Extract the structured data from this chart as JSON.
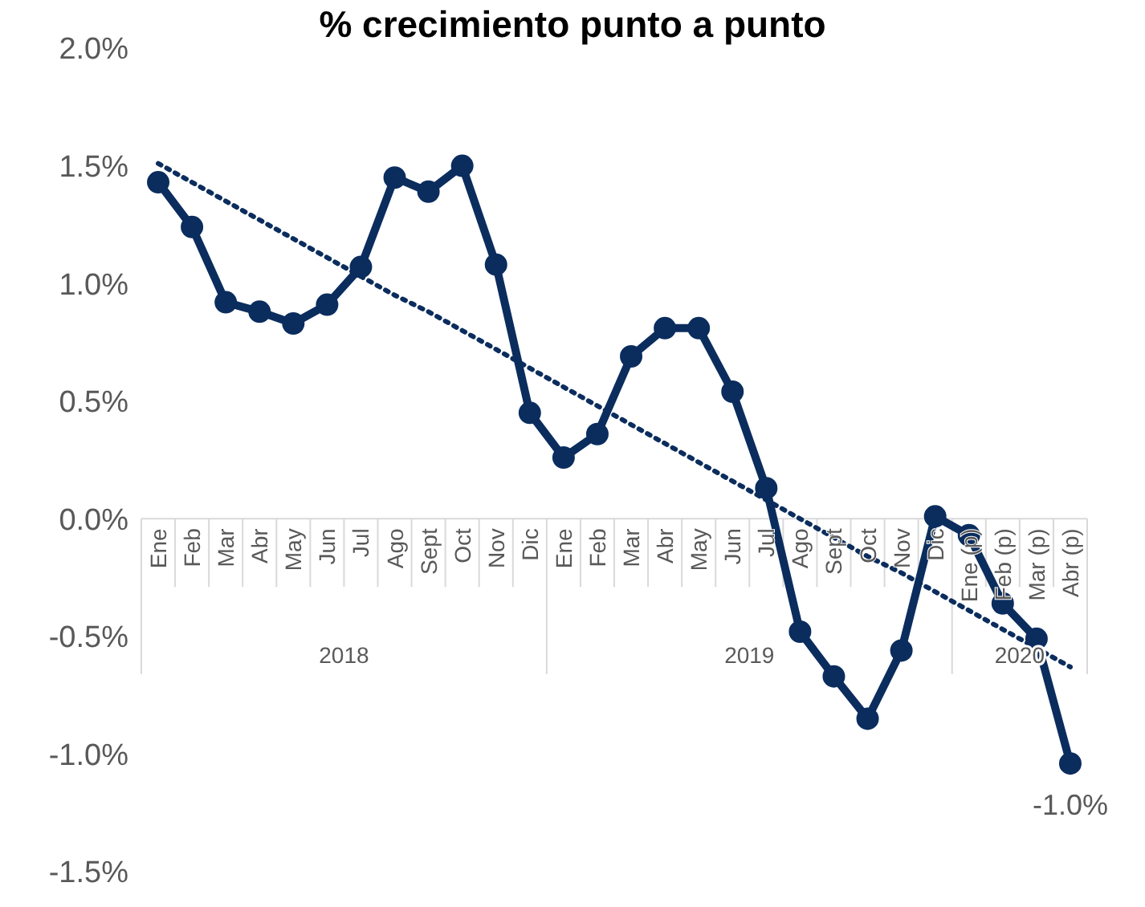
{
  "chart_data": {
    "type": "line",
    "title": "% crecimiento punto a punto",
    "categories": [
      "Ene",
      "Feb",
      "Mar",
      "Abr",
      "May",
      "Jun",
      "Jul",
      "Ago",
      "Sept",
      "Oct",
      "Nov",
      "Dic",
      "Ene",
      "Feb",
      "Mar",
      "Abr",
      "May",
      "Jun",
      "Jul",
      "Ago",
      "Sept",
      "Oct",
      "Nov",
      "Dic",
      "Ene (p)",
      "Feb (p)",
      "Mar (p)",
      "Abr (p)"
    ],
    "annotations": [
      "2018",
      "2019",
      "2020"
    ],
    "series": [
      {
        "color": "#0b2d5e",
        "values": [
          1.43,
          1.24,
          0.92,
          0.88,
          0.83,
          0.91,
          1.07,
          1.45,
          1.39,
          1.5,
          1.08,
          0.45,
          0.26,
          0.36,
          0.69,
          0.81,
          0.81,
          0.54,
          0.13,
          -0.48,
          -0.67,
          -0.85,
          -0.56,
          0.01,
          -0.07,
          -0.36,
          -0.51,
          -1.04
        ],
        "value_labels": [
          null,
          null,
          null,
          null,
          null,
          null,
          null,
          null,
          null,
          null,
          null,
          null,
          null,
          null,
          null,
          null,
          null,
          null,
          null,
          null,
          null,
          null,
          null,
          null,
          null,
          null,
          null,
          "-1.0%"
        ]
      },
      {
        "type": "line",
        "color": "#0b2d5e",
        "line_style": "dotted",
        "marker": "none",
        "values": [
          1.51,
          1.43,
          1.35,
          1.27,
          1.19,
          1.11,
          1.03,
          0.95,
          0.88,
          0.8,
          0.72,
          0.64,
          0.56,
          0.48,
          0.4,
          0.32,
          0.24,
          0.16,
          0.08,
          0.0,
          -0.08,
          -0.16,
          -0.23,
          -0.31,
          -0.39,
          -0.47,
          -0.55,
          -0.63
        ]
      }
    ],
    "ylim": [
      -1.5,
      2.0
    ],
    "yticks": [
      {
        "value": -1.5,
        "label": "-1.5%"
      },
      {
        "value": -1.0,
        "label": "-1.0%"
      },
      {
        "value": -0.5,
        "label": "-0.5%"
      },
      {
        "value": 0,
        "label": "0.0%"
      },
      {
        "value": 0.5,
        "label": "0.5%"
      },
      {
        "value": 1.0,
        "label": "1.0%"
      },
      {
        "value": 1.5,
        "label": "1.5%"
      },
      {
        "value": 2.0,
        "label": "2.0%"
      }
    ],
    "marker": "circle"
  }
}
